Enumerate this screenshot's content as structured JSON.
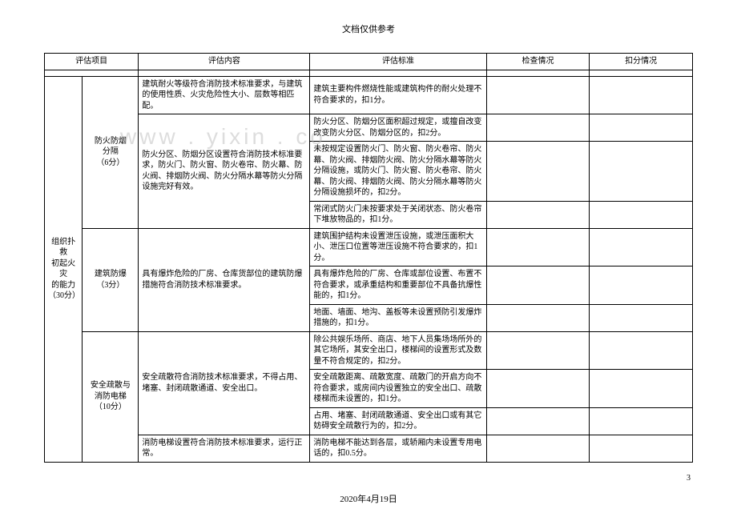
{
  "header": "文档仅供参考",
  "watermark": "www . yixin . co",
  "footer_date": "2020年4月19日",
  "page_number": "3",
  "columns": {
    "cat": "评估项目",
    "content": "评估内容",
    "std": "评估标准",
    "check": "检查情况",
    "deduct": "扣分情况"
  },
  "cat_main": "组织扑救\n初起火灾\n的能力\n（30分）",
  "sub1": "防火防烟\n分隔\n（6分）",
  "sub2": "建筑防爆\n（3分）",
  "sub3": "安全疏散与\n消防电梯\n（10分）",
  "c1": "建筑耐火等级符合消防技术标准要求，与建筑的使用性质、火灾危险性大小、层数等相匹配。",
  "s1": "建筑主要构件燃烧性能或建筑构件的耐火处理不符合要求的，扣1分。",
  "c2": "防火分区、防烟分区设置符合消防技术标准要求，防火门、防火窗、防火卷帘、防火幕、防火阀、排烟防火阀、防火分隔水幕等防火分隔设施完好有效。",
  "s2a": "防火分区、防烟分区面积超过规定，或擅自改变改变防火分区、防烟分区的，扣2分。",
  "s2b": "未按规定设置防火门、防火窗、防火卷帘、防火幕、防火阀、排烟防火阀、防火分隔水幕等防火分隔设施，或防火门、防火窗、防火卷帘、防火幕、防火阀、排烟防火阀、防火分隔水幕等防火分隔设施损坏的，扣2分。",
  "s2c": "常闭式防火门未按要求处于关闭状态、防火卷帘下堆放物品的，扣1分。",
  "c3": "具有爆炸危险的厂房、仓库货部位的建筑防爆措施符合消防技术标准要求。",
  "s3a": "建筑围护结构未设置泄压设施，或泄压面积大小、泄压口位置等泄压设施不符合要求的，扣1分。",
  "s3b": "具有爆炸危险的厂房、仓库或部位设置、布置不符合要求，或承重结构和重要部位不具备抗爆性能的，扣1分。",
  "s3c": "地面、墙面、地沟、盖板等未设置预防引发爆炸措施的，扣1分。",
  "c4": "安全疏散符合消防技术标准要求，不得占用、堵塞、封闭疏散通道、安全出口。",
  "s4a": "除公共娱乐场所、商店、地下人员集场场所外的其它场所，其安全出口，楼梯间的设置形式及数量不符合规定的，扣2分。",
  "s4b": "安全疏散距离、疏散宽度、疏散门的开启方向不符合要求，或房间内设置独立的安全出口、疏散楼梯而未设置的，扣1分。",
  "s4c": "占用、堵塞、封闭疏散通道、安全出口或有其它妨碍安全疏散行为的，扣2分。",
  "c5": "消防电梯设置符合消防技术标准要求，运行正常。",
  "s5": "消防电梯不能达到各层，或轿厢内未设置专用电话的，扣0.5分。"
}
